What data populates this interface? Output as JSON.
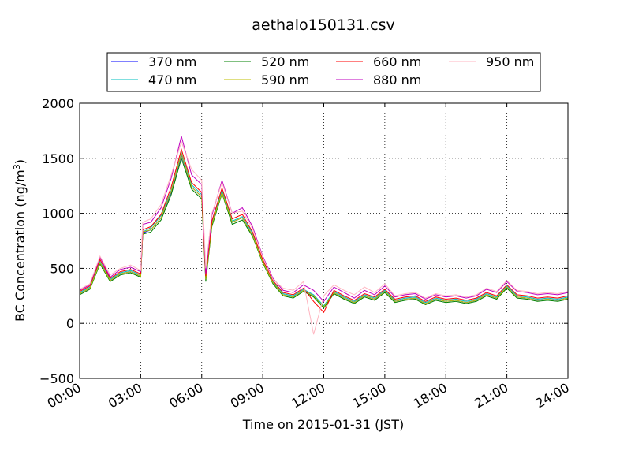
{
  "chart_data": {
    "type": "line",
    "title": "aethalo150131.csv",
    "xlabel": "Time on 2015-01-31 (JST)",
    "ylabel": "BC Concentration (ng/m",
    "ylabel_sup": "3",
    "ylabel_end": ")",
    "xlim": [
      "00:00",
      "24:00"
    ],
    "ylim": [
      -500,
      2000
    ],
    "x_ticks": [
      "00:00",
      "03:00",
      "06:00",
      "09:00",
      "12:00",
      "15:00",
      "18:00",
      "21:00",
      "24:00"
    ],
    "y_ticks": [
      "2000",
      "1500",
      "1000",
      "500",
      "0",
      "−500"
    ],
    "grid": true,
    "legend_position": "top-center",
    "x_hours": [
      0,
      0.5,
      1,
      1.5,
      2,
      2.5,
      3,
      3.1,
      3.5,
      4,
      4.5,
      5,
      5.5,
      6,
      6.2,
      6.5,
      7,
      7.5,
      8,
      8.5,
      9,
      9.5,
      10,
      10.5,
      11,
      11.5,
      12,
      12.5,
      13,
      13.5,
      14,
      14.5,
      15,
      15.5,
      16,
      16.5,
      17,
      17.5,
      18,
      18.5,
      19,
      19.5,
      20,
      20.5,
      21,
      21.5,
      22,
      22.5,
      23,
      23.5,
      24
    ],
    "series": [
      {
        "name": "370 nm",
        "color": "#0000ff",
        "values": [
          270,
          320,
          560,
          390,
          450,
          470,
          430,
          820,
          850,
          960,
          1190,
          1530,
          1240,
          1150,
          400,
          900,
          1200,
          920,
          960,
          800,
          560,
          370,
          260,
          240,
          300,
          250,
          150,
          280,
          230,
          190,
          250,
          220,
          290,
          200,
          220,
          230,
          180,
          220,
          200,
          210,
          190,
          210,
          260,
          230,
          330,
          240,
          230,
          210,
          220,
          210,
          230
        ]
      },
      {
        "name": "470 nm",
        "color": "#00bfbf",
        "values": [
          280,
          330,
          560,
          400,
          460,
          480,
          440,
          830,
          870,
          980,
          1210,
          1550,
          1260,
          1170,
          420,
          920,
          1210,
          930,
          970,
          820,
          570,
          380,
          270,
          250,
          310,
          260,
          160,
          290,
          240,
          200,
          260,
          230,
          300,
          210,
          230,
          240,
          190,
          230,
          210,
          220,
          200,
          220,
          270,
          240,
          340,
          250,
          240,
          220,
          230,
          220,
          240
        ]
      },
      {
        "name": "520 nm",
        "color": "#008000",
        "values": [
          260,
          310,
          540,
          380,
          440,
          460,
          420,
          810,
          830,
          940,
          1170,
          1500,
          1220,
          1130,
          380,
          880,
          1180,
          900,
          940,
          790,
          550,
          360,
          250,
          230,
          290,
          240,
          140,
          270,
          220,
          180,
          240,
          210,
          280,
          190,
          210,
          220,
          170,
          210,
          190,
          200,
          180,
          200,
          250,
          220,
          320,
          230,
          220,
          200,
          210,
          200,
          220
        ]
      },
      {
        "name": "590 nm",
        "color": "#bfbf00",
        "values": [
          270,
          320,
          550,
          390,
          450,
          470,
          430,
          830,
          850,
          960,
          1200,
          1540,
          1240,
          1150,
          400,
          900,
          1190,
          920,
          960,
          800,
          560,
          370,
          260,
          240,
          300,
          250,
          150,
          280,
          230,
          190,
          250,
          220,
          290,
          200,
          220,
          230,
          180,
          220,
          200,
          210,
          190,
          210,
          260,
          230,
          330,
          240,
          230,
          210,
          220,
          210,
          230
        ]
      },
      {
        "name": "660 nm",
        "color": "#ff0000",
        "values": [
          290,
          340,
          580,
          410,
          470,
          490,
          450,
          850,
          880,
          990,
          1240,
          1580,
          1280,
          1190,
          430,
          930,
          1230,
          950,
          990,
          830,
          580,
          390,
          280,
          260,
          320,
          200,
          100,
          300,
          250,
          210,
          270,
          240,
          310,
          220,
          240,
          250,
          200,
          240,
          220,
          230,
          210,
          230,
          280,
          250,
          350,
          260,
          250,
          230,
          240,
          230,
          250
        ]
      },
      {
        "name": "880 nm",
        "color": "#bf00bf",
        "values": [
          300,
          350,
          600,
          420,
          490,
          510,
          470,
          900,
          920,
          1050,
          1320,
          1700,
          1350,
          1260,
          450,
          980,
          1300,
          1000,
          1050,
          880,
          610,
          410,
          300,
          280,
          350,
          300,
          200,
          330,
          280,
          230,
          300,
          260,
          340,
          240,
          260,
          270,
          220,
          260,
          240,
          250,
          230,
          250,
          310,
          280,
          380,
          290,
          280,
          260,
          270,
          260,
          280
        ]
      },
      {
        "name": "950 nm",
        "color": "#ffb6c1",
        "values": [
          310,
          360,
          610,
          440,
          500,
          530,
          480,
          920,
          950,
          1080,
          1350,
          1650,
          1400,
          1300,
          500,
          1000,
          1280,
          1000,
          1020,
          860,
          600,
          400,
          320,
          300,
          380,
          -100,
          250,
          350,
          300,
          260,
          330,
          280,
          360,
          250,
          270,
          280,
          230,
          270,
          250,
          260,
          240,
          260,
          320,
          290,
          390,
          300,
          290,
          270,
          280,
          270,
          290
        ]
      }
    ]
  }
}
